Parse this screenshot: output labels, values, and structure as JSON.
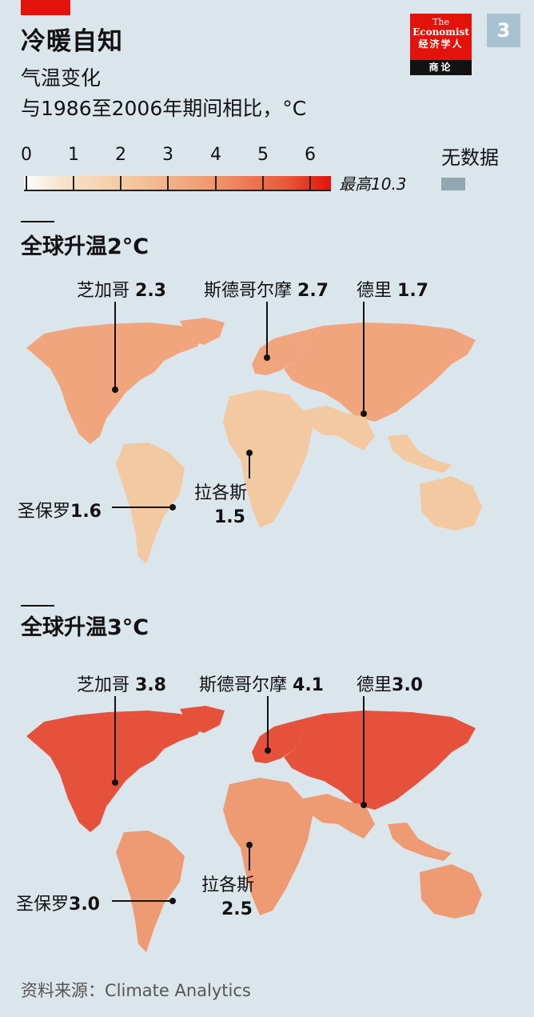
{
  "header": {
    "title": "冷暖自知",
    "subtitle": "气温变化",
    "subtitle2": "与1986至2006年期间相比，°C",
    "chart_number": "3"
  },
  "logo": {
    "line1": "The",
    "line2": "Economist",
    "line3": "经济学人",
    "bottom": "商论"
  },
  "legend": {
    "ticks": [
      "0",
      "1",
      "2",
      "3",
      "4",
      "5",
      "6"
    ],
    "max_label": "最高10.3",
    "no_data_label": "无数据",
    "no_data_color": "#93a7b1",
    "color_low": "#ffffff",
    "color_high": "#e3120b"
  },
  "panels": [
    {
      "title": "全球升温2°C",
      "land_color": "#f2c9a0",
      "north_color": "#f0a57c",
      "cities": {
        "chicago": {
          "name": "芝加哥",
          "value": "2.3"
        },
        "stockholm": {
          "name": "斯德哥尔摩",
          "value": "2.7"
        },
        "delhi": {
          "name": "德里",
          "value": "1.7"
        },
        "lagos": {
          "name": "拉各斯",
          "value": "1.5"
        },
        "saopaulo": {
          "name": "圣保罗",
          "value": "1.6"
        }
      }
    },
    {
      "title": "全球升温3°C",
      "land_color": "#ee9a72",
      "north_color": "#e5513a",
      "cities": {
        "chicago": {
          "name": "芝加哥",
          "value": "3.8"
        },
        "stockholm": {
          "name": "斯德哥尔摩",
          "value": "4.1"
        },
        "delhi": {
          "name": "德里",
          "value": "3.0"
        },
        "lagos": {
          "name": "拉各斯",
          "value": "2.5"
        },
        "saopaulo": {
          "name": "圣保罗",
          "value": "3.0"
        }
      }
    }
  ],
  "source": "资料来源：Climate Analytics"
}
